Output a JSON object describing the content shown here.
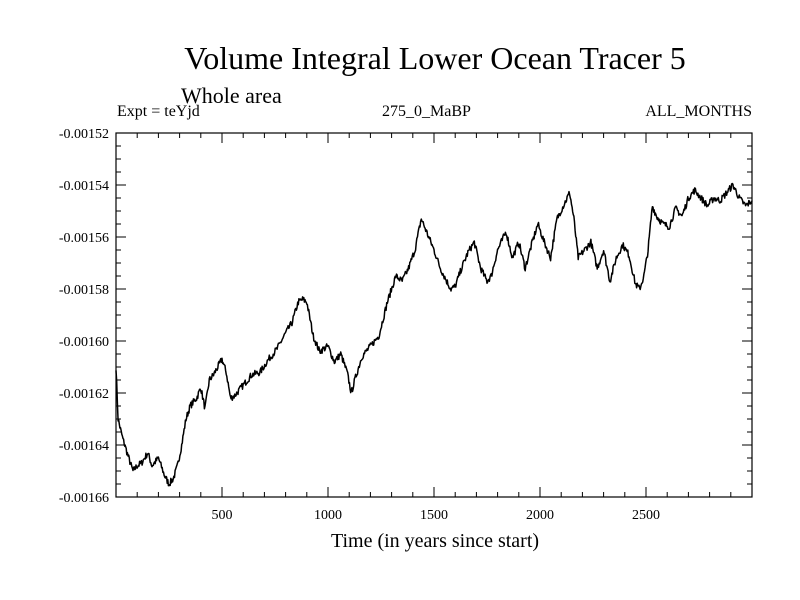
{
  "header": {
    "title": "Volume Integral Lower Ocean Tracer 5",
    "subtitle": "Whole area",
    "left_label": "Expt = teYjd",
    "center_label": "275_0_MaBP",
    "right_label": "ALL_MONTHS"
  },
  "chart_data": {
    "type": "line",
    "title": "Volume Integral Lower Ocean Tracer 5",
    "subtitle": "Whole area",
    "xlabel": "Time (in years since start)",
    "ylabel": "",
    "xlim": [
      0,
      3000
    ],
    "ylim": [
      -0.00166,
      -0.00152
    ],
    "x_ticks": [
      500,
      1000,
      1500,
      2000,
      2500
    ],
    "x_tick_labels": [
      "500",
      "1000",
      "1500",
      "2000",
      "2500"
    ],
    "y_ticks": [
      -0.00152,
      -0.00154,
      -0.00156,
      -0.00158,
      -0.0016,
      -0.00162,
      -0.00164,
      -0.00166
    ],
    "y_tick_labels": [
      "-0.00152",
      "-0.00154",
      "-0.00156",
      "-0.00158",
      "-0.00160",
      "-0.00162",
      "-0.00164",
      "-0.00166"
    ],
    "grid": false,
    "series": [
      {
        "name": "Tracer 5",
        "x": [
          0,
          10,
          30,
          60,
          80,
          100,
          120,
          150,
          170,
          200,
          230,
          250,
          270,
          290,
          310,
          330,
          350,
          380,
          400,
          420,
          440,
          460,
          480,
          500,
          520,
          540,
          560,
          600,
          640,
          680,
          720,
          760,
          800,
          830,
          860,
          880,
          900,
          930,
          960,
          1000,
          1030,
          1060,
          1090,
          1110,
          1130,
          1160,
          1200,
          1240,
          1280,
          1320,
          1350,
          1380,
          1410,
          1440,
          1470,
          1500,
          1530,
          1560,
          1580,
          1600,
          1630,
          1660,
          1690,
          1720,
          1750,
          1770,
          1800,
          1840,
          1870,
          1900,
          1930,
          1960,
          1990,
          2020,
          2050,
          2080,
          2110,
          2140,
          2160,
          2180,
          2210,
          2240,
          2270,
          2300,
          2330,
          2360,
          2390,
          2420,
          2450,
          2470,
          2490,
          2510,
          2530,
          2550,
          2580,
          2610,
          2640,
          2670,
          2700,
          2730,
          2760,
          2790,
          2820,
          2850,
          2880,
          2910,
          2940,
          2970,
          3000
        ],
        "values": [
          -0.00161,
          -0.00163,
          -0.001637,
          -0.001645,
          -0.00165,
          -0.001648,
          -0.001647,
          -0.001643,
          -0.001648,
          -0.001645,
          -0.001652,
          -0.001655,
          -0.001653,
          -0.001648,
          -0.00164,
          -0.00163,
          -0.001625,
          -0.001622,
          -0.001618,
          -0.001626,
          -0.001615,
          -0.001613,
          -0.00161,
          -0.001607,
          -0.001612,
          -0.001622,
          -0.001621,
          -0.001617,
          -0.001613,
          -0.001612,
          -0.001607,
          -0.001603,
          -0.001597,
          -0.001593,
          -0.001585,
          -0.001584,
          -0.001585,
          -0.001598,
          -0.001604,
          -0.001602,
          -0.001608,
          -0.001605,
          -0.001612,
          -0.00162,
          -0.001614,
          -0.001606,
          -0.001602,
          -0.001598,
          -0.001585,
          -0.001575,
          -0.001577,
          -0.001572,
          -0.001565,
          -0.001553,
          -0.001559,
          -0.001565,
          -0.001572,
          -0.001577,
          -0.00158,
          -0.001579,
          -0.001572,
          -0.001566,
          -0.001562,
          -0.001572,
          -0.001577,
          -0.001575,
          -0.001565,
          -0.001558,
          -0.001568,
          -0.001562,
          -0.001572,
          -0.001563,
          -0.001555,
          -0.001562,
          -0.001568,
          -0.001553,
          -0.001548,
          -0.001543,
          -0.001553,
          -0.001568,
          -0.001565,
          -0.001562,
          -0.001572,
          -0.001565,
          -0.001577,
          -0.001568,
          -0.001563,
          -0.001567,
          -0.001578,
          -0.00158,
          -0.001575,
          -0.001565,
          -0.001548,
          -0.001552,
          -0.001555,
          -0.001556,
          -0.001549,
          -0.001552,
          -0.001545,
          -0.001542,
          -0.001545,
          -0.001548,
          -0.001545,
          -0.001546,
          -0.001543,
          -0.00154,
          -0.001545,
          -0.001548,
          -0.001546
        ]
      }
    ]
  }
}
